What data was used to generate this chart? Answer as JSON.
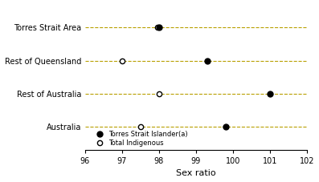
{
  "xlabel": "Sex ratio",
  "xlim": [
    96,
    102
  ],
  "xticks": [
    96,
    97,
    98,
    99,
    100,
    101,
    102
  ],
  "regions": [
    "Australia",
    "Rest of Australia",
    "Rest of Queensland",
    "Torres Strait Area"
  ],
  "tsi_values": [
    99.8,
    101.0,
    99.3,
    98.0
  ],
  "total_ind_values": [
    97.5,
    98.0,
    97.0,
    97.95
  ],
  "dashed_color": "#b8a000",
  "dot_color_filled": "#000000",
  "dot_color_open": "#000000",
  "legend_filled_label": "Torres Strait Islander(a)",
  "legend_open_label": "Total Indigenous",
  "figsize": [
    3.97,
    2.27
  ],
  "dpi": 100
}
